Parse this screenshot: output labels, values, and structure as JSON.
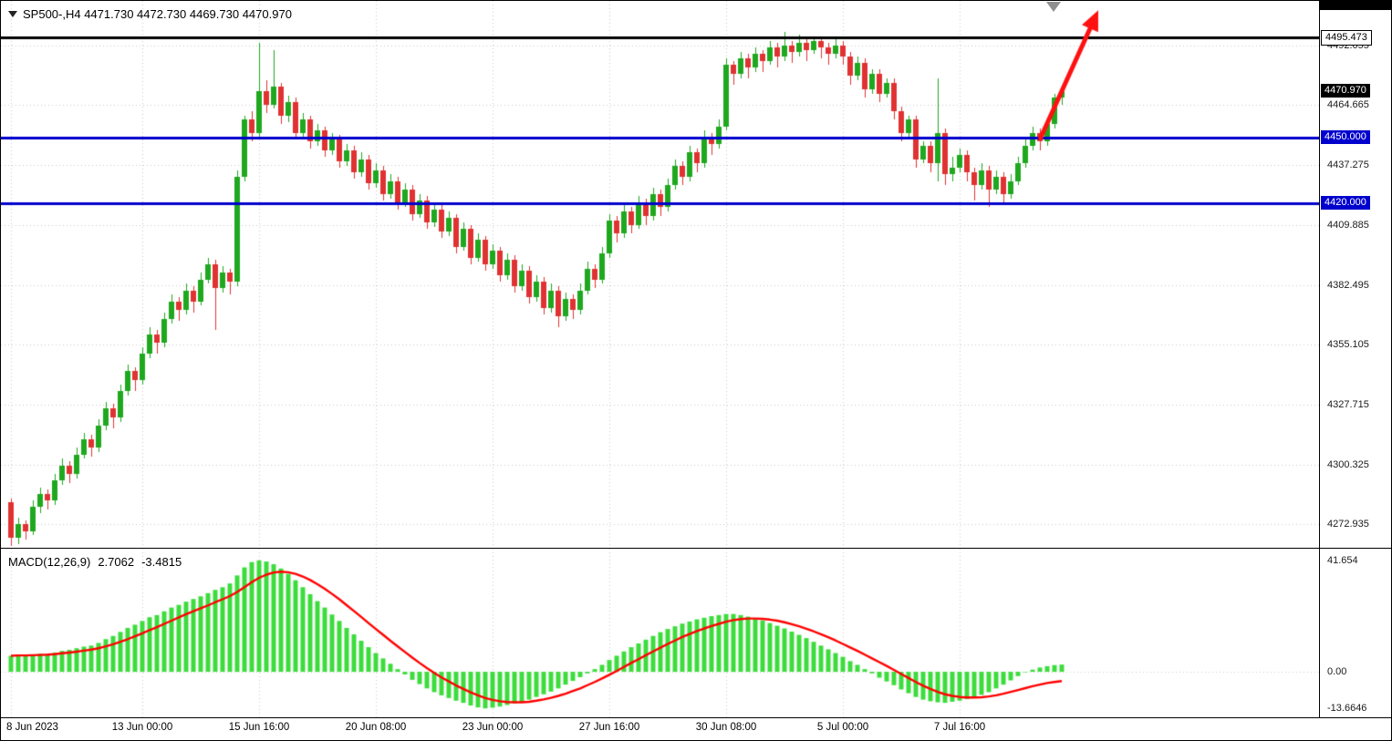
{
  "header": {
    "symbol_period": "SP500-,H4",
    "ohlc_line": "SP500-,H4 4471.730 4472.730 4469.730 4470.970",
    "open": "4471.730",
    "high": "4472.730",
    "low": "4469.730",
    "close": "4470.970"
  },
  "indicator": {
    "label": "MACD(12,26,9)",
    "main_value": "2.7062",
    "signal_value": "-3.4815"
  },
  "colors": {
    "background": "#FFFFFF",
    "grid": "#C9C9C9",
    "candle_up": "#1FA81F",
    "candle_down": "#E03232",
    "macd_bar": "#3CDC3C",
    "macd_signal": "#FF0000",
    "hline_blue": "#0000CD",
    "hline_black": "#000000",
    "arrow": "#FF1111"
  },
  "chart_data": {
    "type": "candlestick",
    "symbol": "SP500-",
    "timeframe": "H4",
    "price_axis": {
      "top": 4512.3,
      "bottom": 4262.3,
      "ticks": [
        4492.055,
        4464.665,
        4437.275,
        4409.885,
        4382.495,
        4355.105,
        4327.715,
        4300.325,
        4272.935
      ]
    },
    "price_labels": [
      {
        "text": "4495.473",
        "value": 4495.473,
        "style": "black-line"
      },
      {
        "text": "4470.970",
        "value": 4470.97,
        "style": "current"
      },
      {
        "text": "4450.000",
        "value": 4450.0,
        "style": "blue-line"
      },
      {
        "text": "4420.000",
        "value": 4420.0,
        "style": "blue-line"
      }
    ],
    "hlines": [
      {
        "value": 4495.473,
        "color": "#000000",
        "width": 3
      },
      {
        "value": 4450.0,
        "color": "#0000CD",
        "width": 3
      },
      {
        "value": 4420.0,
        "color": "#0000CD",
        "width": 3
      }
    ],
    "current_price": 4470.97,
    "time_labels": [
      {
        "text": "8 Jun 2023",
        "index": 0
      },
      {
        "text": "13 Jun 00:00",
        "index": 18
      },
      {
        "text": "15 Jun 16:00",
        "index": 34
      },
      {
        "text": "20 Jun 08:00",
        "index": 50
      },
      {
        "text": "23 Jun 00:00",
        "index": 66
      },
      {
        "text": "27 Jun 16:00",
        "index": 82
      },
      {
        "text": "30 Jun 08:00",
        "index": 98
      },
      {
        "text": "5 Jul 00:00",
        "index": 114
      },
      {
        "text": "7 Jul 16:00",
        "index": 130
      }
    ],
    "trend_arrow": {
      "color": "#FF1111",
      "from": {
        "index": 141,
        "price": 4449
      },
      "to": {
        "index": 149,
        "price": 4508
      }
    },
    "candles": [
      [
        4283,
        4285,
        4263,
        4267
      ],
      [
        4267,
        4276,
        4264,
        4273
      ],
      [
        4273,
        4275,
        4266,
        4270
      ],
      [
        4270,
        4284,
        4268,
        4281
      ],
      [
        4281,
        4290,
        4278,
        4287
      ],
      [
        4287,
        4289,
        4280,
        4284
      ],
      [
        4284,
        4296,
        4282,
        4293
      ],
      [
        4293,
        4303,
        4291,
        4300
      ],
      [
        4300,
        4302,
        4292,
        4296
      ],
      [
        4296,
        4308,
        4294,
        4305
      ],
      [
        4305,
        4315,
        4303,
        4312
      ],
      [
        4312,
        4314,
        4304,
        4308
      ],
      [
        4308,
        4321,
        4306,
        4318
      ],
      [
        4318,
        4329,
        4316,
        4326
      ],
      [
        4326,
        4328,
        4317,
        4322
      ],
      [
        4322,
        4337,
        4320,
        4334
      ],
      [
        4334,
        4346,
        4332,
        4343
      ],
      [
        4343,
        4345,
        4334,
        4339
      ],
      [
        4339,
        4354,
        4337,
        4351
      ],
      [
        4351,
        4363,
        4349,
        4360
      ],
      [
        4360,
        4362,
        4351,
        4356
      ],
      [
        4356,
        4370,
        4354,
        4367
      ],
      [
        4367,
        4378,
        4365,
        4375
      ],
      [
        4375,
        4377,
        4366,
        4371
      ],
      [
        4371,
        4383,
        4369,
        4380
      ],
      [
        4380,
        4382,
        4370,
        4375
      ],
      [
        4375,
        4388,
        4373,
        4385
      ],
      [
        4385,
        4395,
        4383,
        4392
      ],
      [
        4392,
        4394,
        4362,
        4381
      ],
      [
        4381,
        4391,
        4379,
        4388
      ],
      [
        4388,
        4390,
        4378,
        4384
      ],
      [
        4384,
        4435,
        4382,
        4432
      ],
      [
        4432,
        4460,
        4430,
        4458
      ],
      [
        4458,
        4462,
        4448,
        4452
      ],
      [
        4452,
        4493,
        4450,
        4471
      ],
      [
        4471,
        4476,
        4461,
        4465
      ],
      [
        4465,
        4490,
        4463,
        4473
      ],
      [
        4473,
        4475,
        4456,
        4460
      ],
      [
        4460,
        4469,
        4457,
        4466
      ],
      [
        4466,
        4468,
        4449,
        4452
      ],
      [
        4452,
        4461,
        4450,
        4458
      ],
      [
        4458,
        4460,
        4445,
        4448
      ],
      [
        4448,
        4456,
        4446,
        4453
      ],
      [
        4453,
        4455,
        4441,
        4444
      ],
      [
        4444,
        4452,
        4442,
        4449
      ],
      [
        4449,
        4451,
        4436,
        4439
      ],
      [
        4439,
        4447,
        4437,
        4444
      ],
      [
        4444,
        4446,
        4431,
        4434
      ],
      [
        4434,
        4443,
        4432,
        4440
      ],
      [
        4440,
        4442,
        4426,
        4429
      ],
      [
        4429,
        4438,
        4427,
        4435
      ],
      [
        4435,
        4437,
        4421,
        4424
      ],
      [
        4424,
        4433,
        4422,
        4430
      ],
      [
        4430,
        4432,
        4417,
        4420
      ],
      [
        4420,
        4429,
        4418,
        4426
      ],
      [
        4426,
        4428,
        4412,
        4415
      ],
      [
        4415,
        4424,
        4413,
        4421
      ],
      [
        4421,
        4423,
        4408,
        4411
      ],
      [
        4411,
        4420,
        4409,
        4417
      ],
      [
        4417,
        4419,
        4404,
        4407
      ],
      [
        4407,
        4416,
        4405,
        4413
      ],
      [
        4413,
        4415,
        4397,
        4400
      ],
      [
        4400,
        4411,
        4398,
        4408
      ],
      [
        4408,
        4410,
        4392,
        4395
      ],
      [
        4395,
        4406,
        4393,
        4403
      ],
      [
        4403,
        4405,
        4389,
        4392
      ],
      [
        4392,
        4401,
        4390,
        4398
      ],
      [
        4398,
        4400,
        4384,
        4387
      ],
      [
        4387,
        4397,
        4385,
        4394
      ],
      [
        4394,
        4396,
        4379,
        4382
      ],
      [
        4382,
        4392,
        4380,
        4389
      ],
      [
        4389,
        4391,
        4374,
        4377
      ],
      [
        4377,
        4387,
        4375,
        4384
      ],
      [
        4384,
        4386,
        4369,
        4372
      ],
      [
        4372,
        4383,
        4370,
        4380
      ],
      [
        4380,
        4382,
        4363,
        4368
      ],
      [
        4368,
        4379,
        4366,
        4376
      ],
      [
        4376,
        4378,
        4367,
        4371
      ],
      [
        4371,
        4383,
        4369,
        4380
      ],
      [
        4380,
        4393,
        4378,
        4390
      ],
      [
        4390,
        4392,
        4381,
        4385
      ],
      [
        4385,
        4400,
        4383,
        4397
      ],
      [
        4397,
        4415,
        4395,
        4412
      ],
      [
        4412,
        4414,
        4402,
        4406
      ],
      [
        4406,
        4419,
        4404,
        4416
      ],
      [
        4416,
        4418,
        4406,
        4410
      ],
      [
        4410,
        4423,
        4408,
        4420
      ],
      [
        4420,
        4422,
        4410,
        4414
      ],
      [
        4414,
        4427,
        4412,
        4424
      ],
      [
        4424,
        4426,
        4414,
        4418
      ],
      [
        4418,
        4431,
        4416,
        4428
      ],
      [
        4428,
        4440,
        4426,
        4437
      ],
      [
        4437,
        4439,
        4428,
        4432
      ],
      [
        4432,
        4446,
        4430,
        4443
      ],
      [
        4443,
        4445,
        4434,
        4438
      ],
      [
        4438,
        4453,
        4436,
        4450
      ],
      [
        4450,
        4452,
        4442,
        4447
      ],
      [
        4447,
        4458,
        4445,
        4455
      ],
      [
        4455,
        4486,
        4453,
        4483
      ],
      [
        4483,
        4485,
        4474,
        4479
      ],
      [
        4479,
        4489,
        4477,
        4486
      ],
      [
        4486,
        4488,
        4477,
        4482
      ],
      [
        4482,
        4491,
        4480,
        4488
      ],
      [
        4488,
        4490,
        4480,
        4485
      ],
      [
        4485,
        4494,
        4483,
        4491
      ],
      [
        4491,
        4493,
        4482,
        4487
      ],
      [
        4487,
        4498,
        4485,
        4492
      ],
      [
        4492,
        4494,
        4484,
        4489
      ],
      [
        4489,
        4497,
        4487,
        4493
      ],
      [
        4493,
        4495,
        4485,
        4490
      ],
      [
        4490,
        4496,
        4488,
        4494
      ],
      [
        4494,
        4496,
        4486,
        4491
      ],
      [
        4491,
        4493,
        4483,
        4488
      ],
      [
        4488,
        4495,
        4486,
        4492
      ],
      [
        4492,
        4494,
        4483,
        4487
      ],
      [
        4487,
        4489,
        4474,
        4478
      ],
      [
        4478,
        4487,
        4476,
        4484
      ],
      [
        4484,
        4486,
        4468,
        4472
      ],
      [
        4472,
        4481,
        4470,
        4479
      ],
      [
        4479,
        4481,
        4466,
        4470
      ],
      [
        4470,
        4477,
        4468,
        4475
      ],
      [
        4475,
        4477,
        4458,
        4462
      ],
      [
        4462,
        4464,
        4448,
        4452
      ],
      [
        4452,
        4460,
        4450,
        4458
      ],
      [
        4458,
        4460,
        4436,
        4440
      ],
      [
        4440,
        4448,
        4438,
        4446
      ],
      [
        4446,
        4448,
        4434,
        4438
      ],
      [
        4438,
        4477,
        4430,
        4452
      ],
      [
        4452,
        4454,
        4428,
        4433
      ],
      [
        4433,
        4441,
        4430,
        4436
      ],
      [
        4436,
        4445,
        4434,
        4442
      ],
      [
        4442,
        4444,
        4430,
        4434
      ],
      [
        4434,
        4436,
        4421,
        4428
      ],
      [
        4428,
        4438,
        4426,
        4435
      ],
      [
        4435,
        4437,
        4418,
        4426
      ],
      [
        4426,
        4435,
        4424,
        4432
      ],
      [
        4432,
        4434,
        4420,
        4424
      ],
      [
        4424,
        4433,
        4422,
        4430
      ],
      [
        4430,
        4441,
        4428,
        4438
      ],
      [
        4438,
        4449,
        4436,
        4446
      ],
      [
        4446,
        4455,
        4444,
        4452
      ],
      [
        4452,
        4454,
        4444,
        4448
      ],
      [
        4448,
        4459,
        4446,
        4456
      ],
      [
        4456,
        4470,
        4454,
        4468
      ],
      [
        4468,
        4472.73,
        4465,
        4470.97
      ]
    ],
    "macd": {
      "params": "12,26,9",
      "axis": {
        "max": 46,
        "min": -17
      },
      "scale_labels": [
        {
          "text": "41.654",
          "value": 41.654
        },
        {
          "text": "0.00",
          "value": 0
        },
        {
          "text": "-13.6646",
          "value": -13.6646
        }
      ],
      "histogram": [
        6.0,
        6.3,
        6.1,
        6.4,
        6.8,
        6.6,
        7.2,
        7.8,
        8.2,
        8.8,
        9.4,
        9.8,
        10.8,
        12.2,
        13.4,
        14.9,
        16.4,
        17.6,
        19.0,
        20.4,
        21.2,
        22.6,
        24.0,
        25.0,
        26.2,
        27.2,
        28.2,
        29.4,
        30.6,
        31.6,
        33.0,
        36.0,
        39.0,
        41.0,
        41.654,
        41.2,
        40.2,
        38.6,
        36.6,
        34.2,
        31.6,
        29.0,
        26.4,
        24.0,
        21.4,
        19.0,
        16.4,
        14.0,
        11.6,
        9.2,
        7.0,
        5.0,
        3.0,
        1.0,
        -1.0,
        -3.0,
        -4.6,
        -6.2,
        -7.6,
        -8.8,
        -9.8,
        -10.8,
        -11.6,
        -12.6,
        -13.3,
        -13.6646,
        -13.4,
        -13.0,
        -12.4,
        -11.8,
        -11.2,
        -10.4,
        -9.4,
        -8.4,
        -7.4,
        -6.2,
        -4.8,
        -3.4,
        -2.0,
        -0.6,
        1.0,
        2.6,
        4.4,
        6.0,
        7.6,
        9.2,
        10.6,
        12.0,
        13.4,
        14.8,
        16.0,
        17.0,
        18.0,
        18.8,
        19.6,
        20.2,
        20.8,
        21.2,
        21.6,
        21.6,
        21.2,
        20.6,
        20.0,
        19.2,
        18.2,
        17.2,
        16.2,
        15.0,
        13.8,
        12.6,
        11.2,
        9.8,
        8.4,
        7.0,
        5.6,
        4.0,
        2.6,
        1.0,
        -0.6,
        -2.2,
        -3.6,
        -5.0,
        -6.6,
        -8.0,
        -9.4,
        -10.4,
        -11.0,
        -11.4,
        -11.6,
        -11.2,
        -10.8,
        -10.2,
        -9.4,
        -8.6,
        -7.6,
        -6.2,
        -4.8,
        -3.2,
        -1.6,
        -0.2,
        0.8,
        1.6,
        2.1,
        2.5,
        2.7062
      ],
      "signal": [
        6.0,
        6.1,
        6.1,
        6.2,
        6.3,
        6.4,
        6.6,
        6.9,
        7.2,
        7.5,
        7.9,
        8.3,
        8.8,
        9.5,
        10.3,
        11.2,
        12.2,
        13.3,
        14.4,
        15.6,
        16.7,
        17.9,
        19.1,
        20.3,
        21.5,
        22.6,
        23.7,
        24.8,
        26.0,
        27.1,
        28.3,
        29.8,
        31.6,
        33.5,
        35.1,
        36.3,
        37.1,
        37.4,
        37.2,
        36.6,
        35.6,
        34.3,
        32.7,
        31.0,
        29.1,
        27.1,
        24.9,
        22.7,
        20.5,
        18.2,
        16.0,
        13.8,
        11.6,
        9.5,
        7.4,
        5.3,
        3.3,
        1.4,
        -0.4,
        -2.1,
        -3.6,
        -5.1,
        -6.4,
        -7.7,
        -8.8,
        -9.8,
        -10.5,
        -11.0,
        -11.3,
        -11.4,
        -11.4,
        -11.2,
        -10.8,
        -10.3,
        -9.7,
        -9.0,
        -8.2,
        -7.2,
        -6.2,
        -5.0,
        -3.8,
        -2.5,
        -1.1,
        0.3,
        1.8,
        3.3,
        4.7,
        6.2,
        7.6,
        9.0,
        10.4,
        11.7,
        13.0,
        14.1,
        15.2,
        16.2,
        17.1,
        17.9,
        18.7,
        19.3,
        19.7,
        19.9,
        19.9,
        19.8,
        19.5,
        19.1,
        18.5,
        17.8,
        17.0,
        16.1,
        15.1,
        14.0,
        12.9,
        11.7,
        10.4,
        9.1,
        7.8,
        6.4,
        5.0,
        3.6,
        2.2,
        0.7,
        -0.8,
        -2.3,
        -3.8,
        -5.2,
        -6.4,
        -7.5,
        -8.4,
        -9.0,
        -9.4,
        -9.6,
        -9.6,
        -9.5,
        -9.2,
        -8.8,
        -8.2,
        -7.5,
        -6.8,
        -6.1,
        -5.4,
        -4.8,
        -4.2,
        -3.8,
        -3.4815
      ]
    }
  }
}
